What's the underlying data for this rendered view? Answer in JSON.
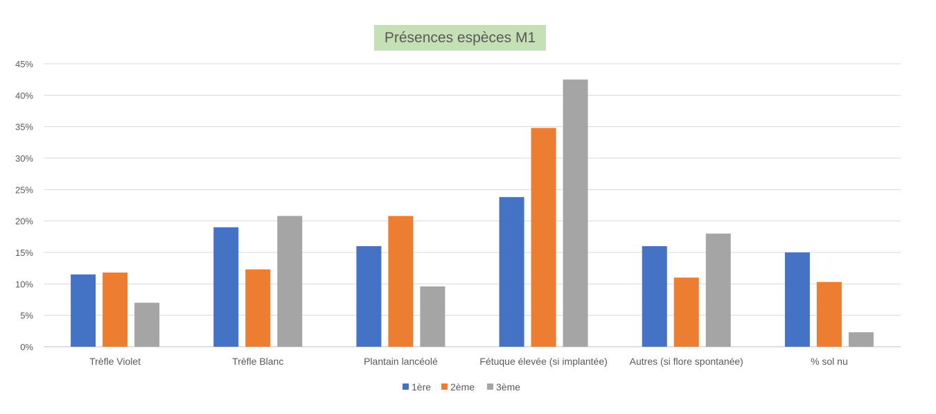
{
  "chart_data": {
    "type": "bar",
    "title": "Présences espèces M1",
    "xlabel": "",
    "ylabel": "",
    "categories": [
      "Trèfle Violet",
      "Trèfle Blanc",
      "Plantain lancéolé",
      "Fétuque élevée (si implantée)",
      "Autres (si flore spontanée)",
      "% sol nu"
    ],
    "series": [
      {
        "name": "1ère",
        "color": "#4472c4",
        "values": [
          11.5,
          19.0,
          16.0,
          23.8,
          16.0,
          15.0
        ]
      },
      {
        "name": "2ème",
        "color": "#ed7d31",
        "values": [
          11.8,
          12.3,
          20.8,
          34.8,
          11.0,
          10.3
        ]
      },
      {
        "name": "3ème",
        "color": "#a5a5a5",
        "values": [
          7.0,
          20.8,
          9.6,
          42.5,
          18.0,
          2.3
        ]
      }
    ],
    "ylim": [
      0,
      45
    ],
    "yticks": [
      "0%",
      "5%",
      "10%",
      "15%",
      "20%",
      "25%",
      "30%",
      "35%",
      "40%",
      "45%"
    ],
    "grid": true,
    "legend_position": "bottom"
  }
}
